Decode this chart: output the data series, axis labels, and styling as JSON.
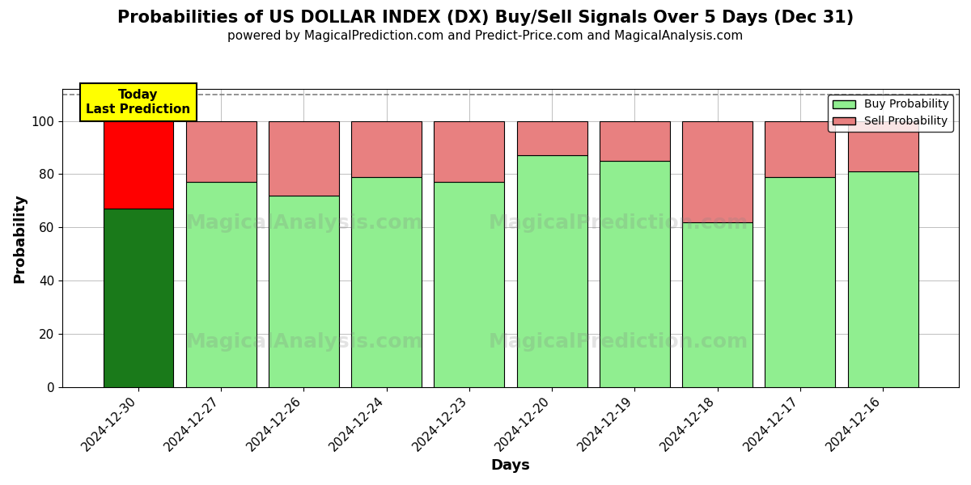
{
  "title": "Probabilities of US DOLLAR INDEX (DX) Buy/Sell Signals Over 5 Days (Dec 31)",
  "subtitle": "powered by MagicalPrediction.com and Predict-Price.com and MagicalAnalysis.com",
  "xlabel": "Days",
  "ylabel": "Probability",
  "dates": [
    "2024-12-30",
    "2024-12-27",
    "2024-12-26",
    "2024-12-24",
    "2024-12-23",
    "2024-12-20",
    "2024-12-19",
    "2024-12-18",
    "2024-12-17",
    "2024-12-16"
  ],
  "buy_values": [
    67,
    77,
    72,
    79,
    77,
    87,
    85,
    62,
    79,
    81
  ],
  "sell_values": [
    33,
    23,
    28,
    21,
    23,
    13,
    15,
    38,
    21,
    19
  ],
  "buy_colors": [
    "#1a7a1a",
    "#90ee90",
    "#90ee90",
    "#90ee90",
    "#90ee90",
    "#90ee90",
    "#90ee90",
    "#90ee90",
    "#90ee90",
    "#90ee90"
  ],
  "sell_colors": [
    "#ff0000",
    "#e88080",
    "#e88080",
    "#e88080",
    "#e88080",
    "#e88080",
    "#e88080",
    "#e88080",
    "#e88080",
    "#e88080"
  ],
  "ylim": [
    0,
    112
  ],
  "yticks": [
    0,
    20,
    40,
    60,
    80,
    100
  ],
  "dashed_line_y": 110,
  "today_box_text": "Today\nLast Prediction",
  "today_box_color": "#ffff00",
  "legend_buy_label": "Buy Probability",
  "legend_sell_label": "Sell Probability",
  "legend_buy_color": "#90ee90",
  "legend_sell_color": "#e88080",
  "background_color": "#ffffff",
  "bar_width": 0.85,
  "title_fontsize": 15,
  "subtitle_fontsize": 11,
  "axis_label_fontsize": 13,
  "tick_fontsize": 11
}
